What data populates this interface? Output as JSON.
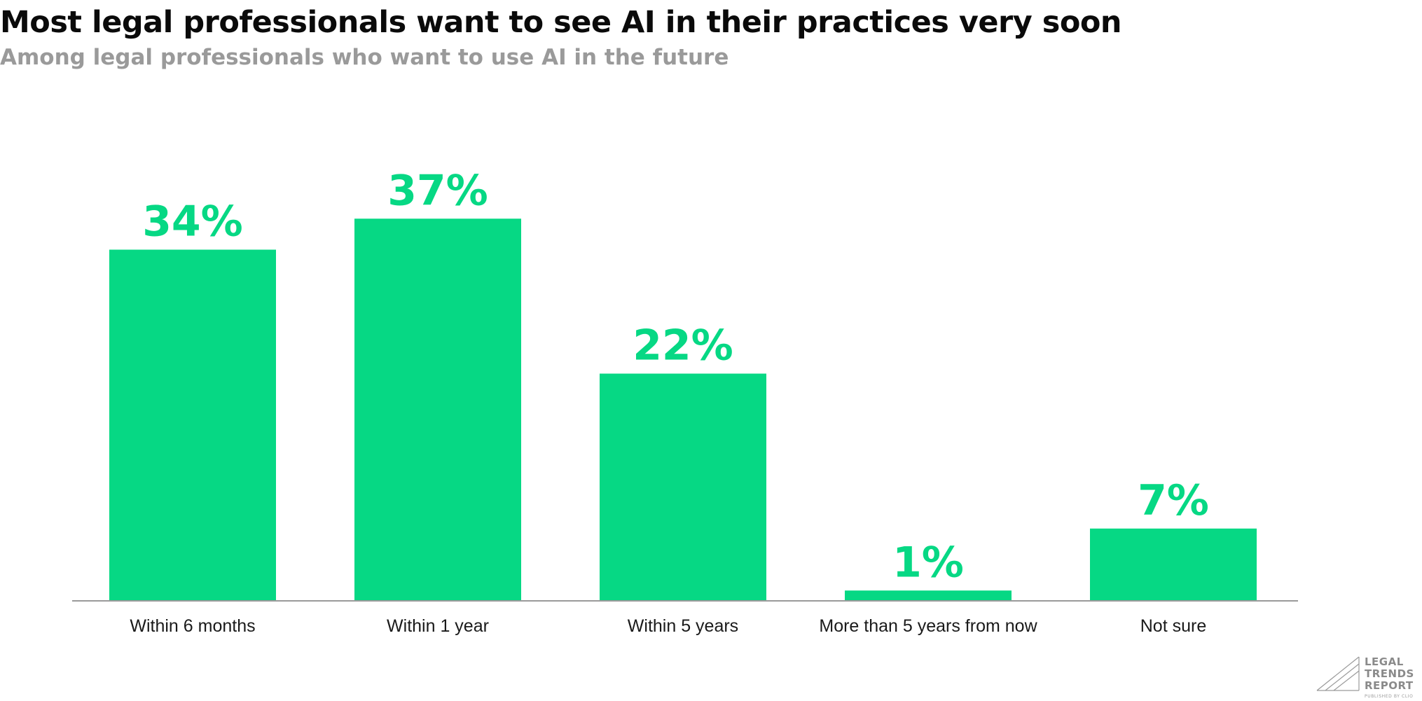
{
  "chart_data": {
    "type": "bar",
    "title": "Most legal professionals want to see AI in their practices very soon",
    "subtitle": "Among legal professionals who want to use AI in the future",
    "categories": [
      "Within 6 months",
      "Within 1 year",
      "Within 5 years",
      "More than 5 years from now",
      "Not sure"
    ],
    "values": [
      34,
      37,
      22,
      1,
      7
    ],
    "value_labels": [
      "34%",
      "37%",
      "22%",
      "1%",
      "7%"
    ],
    "unit": "%",
    "ylim": [
      0,
      40
    ],
    "grid": false,
    "legend": "none",
    "xlabel": "",
    "ylabel": ""
  },
  "colors": {
    "bar": "#06d884",
    "value_label": "#06d884",
    "title": "#0a0a0a",
    "subtitle": "#9a9a9a",
    "axis": "#9a9a9a"
  },
  "branding": {
    "logo_lines": [
      "LEGAL",
      "TRENDS",
      "REPORT"
    ],
    "logo_sub": "PUBLISHED BY CLIO",
    "logo_icon": "triangle-lines-icon"
  }
}
